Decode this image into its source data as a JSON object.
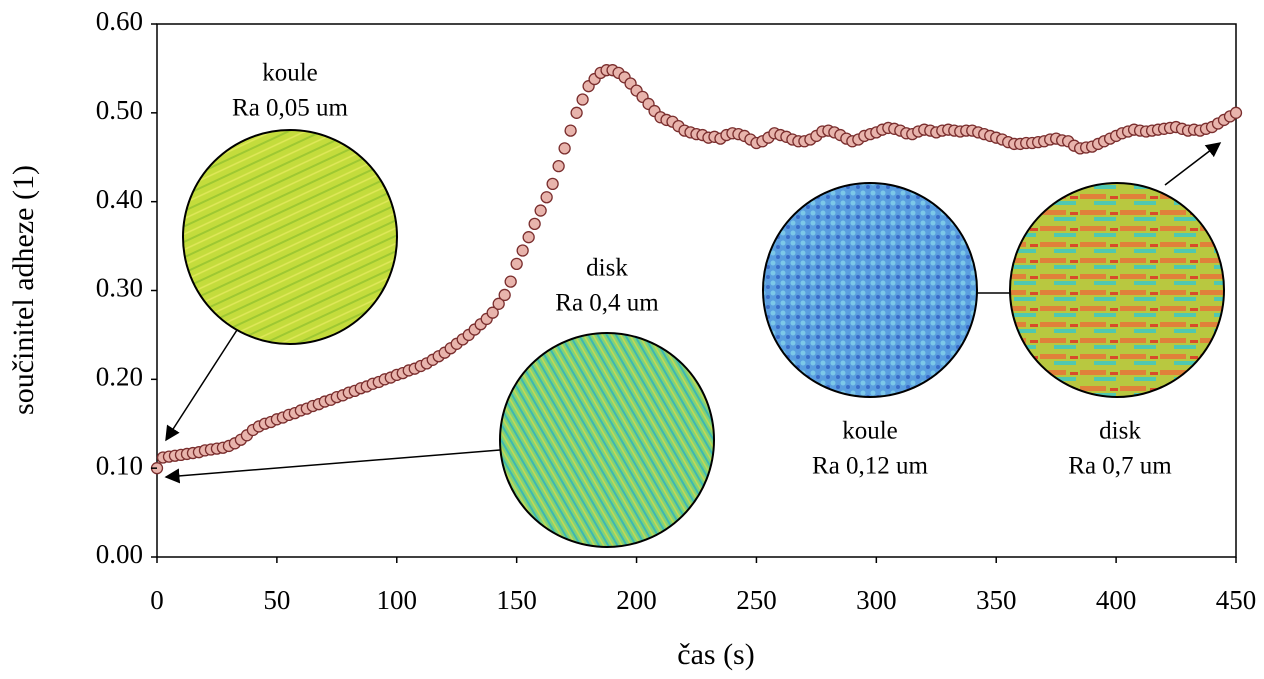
{
  "chart_data": {
    "type": "scatter",
    "x_label": "čas (s)",
    "y_label": "součinitel adheze (1)",
    "xlim": [
      0,
      450
    ],
    "ylim": [
      0,
      0.6
    ],
    "xticks": [
      0,
      50,
      100,
      150,
      200,
      250,
      300,
      350,
      400,
      450
    ],
    "yticks": [
      {
        "value": 0,
        "label": "0.00"
      },
      {
        "value": 0.1,
        "label": "0.10"
      },
      {
        "value": 0.2,
        "label": "0.20"
      },
      {
        "value": 0.3,
        "label": "0.30"
      },
      {
        "value": 0.4,
        "label": "0.40"
      },
      {
        "value": 0.5,
        "label": "0.50"
      },
      {
        "value": 0.6,
        "label": "0.60"
      }
    ],
    "grid": false,
    "series": [
      {
        "color": "#e8b4ac",
        "x": [
          0,
          2.5,
          5,
          7.5,
          10,
          12.5,
          15,
          17.5,
          20,
          22.5,
          25,
          27.5,
          30,
          32.5,
          35,
          37.5,
          40,
          42.5,
          45,
          47.5,
          50,
          52.5,
          55,
          57.5,
          60,
          62.5,
          65,
          67.5,
          70,
          72.5,
          75,
          77.5,
          80,
          82.5,
          85,
          87.5,
          90,
          92.5,
          95,
          97.5,
          100,
          102.5,
          105,
          107.5,
          110,
          112.5,
          115,
          117.5,
          120,
          122.5,
          125,
          127.5,
          130,
          132.5,
          135,
          137.5,
          140,
          142.5,
          145,
          147.5,
          150,
          152.5,
          155,
          157.5,
          160,
          162.5,
          165,
          167.5,
          170,
          172.5,
          175,
          177.5,
          180,
          182.5,
          185,
          187.5,
          190,
          192.5,
          195,
          197.5,
          200,
          202.5,
          205,
          207.5,
          210,
          212.5,
          215,
          217.5,
          220,
          222.5,
          225,
          227.5,
          230,
          232.5,
          235,
          237.5,
          240,
          242.5,
          245,
          247.5,
          250,
          252.5,
          255,
          257.5,
          260,
          262.5,
          265,
          267.5,
          270,
          272.5,
          275,
          277.5,
          280,
          282.5,
          285,
          287.5,
          290,
          292.5,
          295,
          297.5,
          300,
          302.5,
          305,
          307.5,
          310,
          312.5,
          315,
          317.5,
          320,
          322.5,
          325,
          327.5,
          330,
          332.5,
          335,
          337.5,
          340,
          342.5,
          345,
          347.5,
          350,
          352.5,
          355,
          357.5,
          360,
          362.5,
          365,
          367.5,
          370,
          372.5,
          375,
          377.5,
          380,
          382.5,
          385,
          387.5,
          390,
          392.5,
          395,
          397.5,
          400,
          402.5,
          405,
          407.5,
          410,
          412.5,
          415,
          417.5,
          420,
          422.5,
          425,
          427.5,
          430,
          432.5,
          435,
          437.5,
          440,
          442.5,
          445,
          447.5,
          450
        ],
        "values": [
          0.1,
          0.112,
          0.113,
          0.114,
          0.115,
          0.116,
          0.117,
          0.118,
          0.12,
          0.121,
          0.122,
          0.123,
          0.125,
          0.128,
          0.132,
          0.137,
          0.143,
          0.147,
          0.15,
          0.152,
          0.155,
          0.157,
          0.16,
          0.162,
          0.165,
          0.167,
          0.17,
          0.172,
          0.175,
          0.177,
          0.18,
          0.182,
          0.185,
          0.187,
          0.19,
          0.192,
          0.195,
          0.197,
          0.2,
          0.202,
          0.205,
          0.207,
          0.21,
          0.212,
          0.215,
          0.218,
          0.222,
          0.226,
          0.23,
          0.235,
          0.24,
          0.245,
          0.25,
          0.256,
          0.262,
          0.268,
          0.275,
          0.285,
          0.295,
          0.31,
          0.33,
          0.345,
          0.36,
          0.375,
          0.39,
          0.405,
          0.42,
          0.44,
          0.46,
          0.48,
          0.5,
          0.515,
          0.53,
          0.538,
          0.545,
          0.548,
          0.548,
          0.545,
          0.54,
          0.533,
          0.525,
          0.518,
          0.51,
          0.502,
          0.495,
          0.492,
          0.49,
          0.485,
          0.48,
          0.478,
          0.476,
          0.475,
          0.472,
          0.473,
          0.471,
          0.475,
          0.477,
          0.476,
          0.474,
          0.47,
          0.466,
          0.468,
          0.472,
          0.477,
          0.475,
          0.473,
          0.47,
          0.468,
          0.468,
          0.47,
          0.474,
          0.479,
          0.48,
          0.478,
          0.475,
          0.471,
          0.468,
          0.47,
          0.474,
          0.476,
          0.478,
          0.481,
          0.483,
          0.482,
          0.48,
          0.477,
          0.476,
          0.479,
          0.481,
          0.48,
          0.478,
          0.48,
          0.481,
          0.48,
          0.479,
          0.48,
          0.48,
          0.478,
          0.476,
          0.474,
          0.472,
          0.47,
          0.467,
          0.465,
          0.465,
          0.466,
          0.466,
          0.467,
          0.468,
          0.47,
          0.471,
          0.469,
          0.468,
          0.463,
          0.46,
          0.461,
          0.462,
          0.465,
          0.468,
          0.471,
          0.474,
          0.477,
          0.479,
          0.481,
          0.48,
          0.479,
          0.48,
          0.481,
          0.482,
          0.483,
          0.484,
          0.482,
          0.48,
          0.481,
          0.48,
          0.482,
          0.484,
          0.488,
          0.492,
          0.496,
          0.5
        ]
      }
    ],
    "annotations": [
      {
        "lines": [
          "koule",
          "Ra 0,05 um"
        ]
      },
      {
        "lines": [
          "disk",
          "Ra 0,4 um"
        ]
      },
      {
        "lines": [
          "koule",
          "Ra 0,12 um"
        ]
      },
      {
        "lines": [
          "disk",
          "Ra 0,7 um"
        ]
      }
    ]
  }
}
